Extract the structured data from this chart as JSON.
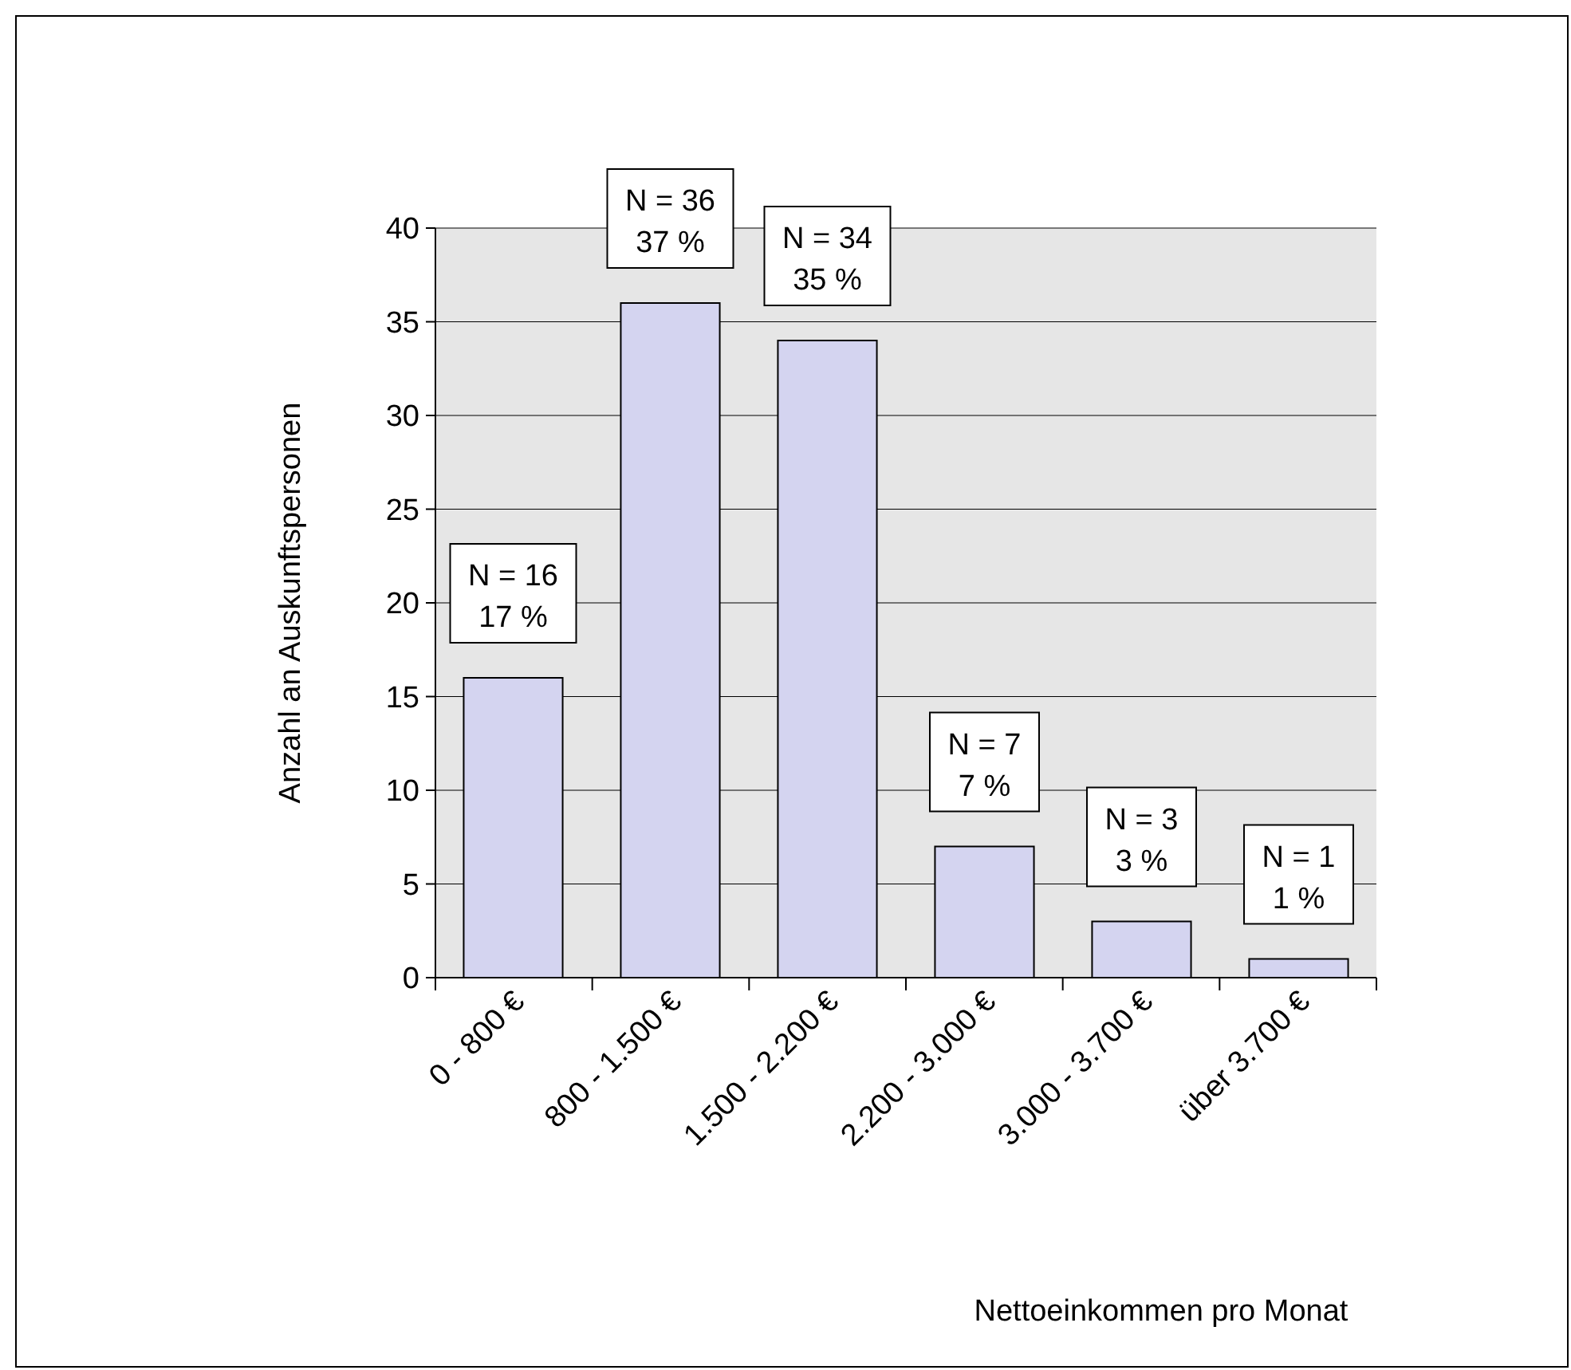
{
  "chart_data": {
    "type": "bar",
    "xlabel": "Nettoeinkommen pro Monat",
    "ylabel": "Anzahl an Auskunftspersonen",
    "categories": [
      "0 - 800 €",
      "800 - 1.500 €",
      "1.500 - 2.200 €",
      "2.200 - 3.000 €",
      "3.000 - 3.700 €",
      "über 3.700 €"
    ],
    "values": [
      16,
      36,
      34,
      7,
      3,
      1
    ],
    "value_labels": [
      "N = 16\n17 %",
      "N = 36\n37 %",
      "N = 34\n35 %",
      "N = 7\n7 %",
      "N = 3\n3 %",
      "N = 1\n1 %"
    ],
    "color": "#d4d4f0",
    "ylim": [
      0,
      40
    ],
    "yticks": [
      0,
      5,
      10,
      15,
      20,
      25,
      30,
      35,
      40
    ],
    "grid": "y"
  }
}
